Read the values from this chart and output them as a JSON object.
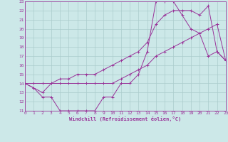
{
  "xlabel": "Windchill (Refroidissement éolien,°C)",
  "xlim": [
    0,
    23
  ],
  "ylim": [
    11,
    23
  ],
  "yticks": [
    11,
    12,
    13,
    14,
    15,
    16,
    17,
    18,
    19,
    20,
    21,
    22,
    23
  ],
  "xticks": [
    0,
    1,
    2,
    3,
    4,
    5,
    6,
    7,
    8,
    9,
    10,
    11,
    12,
    13,
    14,
    15,
    16,
    17,
    18,
    19,
    20,
    21,
    22,
    23
  ],
  "bg_color": "#cce8e8",
  "line_color": "#993399",
  "grid_color": "#aacccc",
  "line1_x": [
    0,
    1,
    2,
    3,
    4,
    5,
    6,
    7,
    8,
    9,
    10,
    11,
    12,
    13,
    14,
    15,
    16,
    17,
    18,
    19,
    20,
    21,
    22,
    23
  ],
  "line1_y": [
    14.0,
    13.5,
    12.5,
    12.5,
    11.0,
    11.0,
    11.0,
    11.0,
    11.0,
    12.5,
    12.5,
    14.0,
    14.0,
    15.0,
    17.5,
    23.0,
    23.0,
    23.0,
    21.5,
    20.0,
    19.5,
    17.0,
    17.5,
    16.5
  ],
  "line2_x": [
    0,
    1,
    2,
    3,
    4,
    5,
    6,
    7,
    8,
    9,
    10,
    11,
    12,
    13,
    14,
    15,
    16,
    17,
    18,
    19,
    20,
    21,
    22,
    23
  ],
  "line2_y": [
    14.0,
    13.5,
    13.0,
    14.0,
    14.5,
    14.5,
    15.0,
    15.0,
    15.0,
    15.5,
    16.0,
    16.5,
    17.0,
    17.5,
    18.5,
    20.5,
    21.5,
    22.0,
    22.0,
    22.0,
    21.5,
    22.5,
    17.5,
    16.5
  ],
  "line3_x": [
    0,
    1,
    2,
    3,
    4,
    5,
    6,
    7,
    8,
    9,
    10,
    11,
    12,
    13,
    14,
    15,
    16,
    17,
    18,
    19,
    20,
    21,
    22,
    23
  ],
  "line3_y": [
    14.0,
    14.0,
    14.0,
    14.0,
    14.0,
    14.0,
    14.0,
    14.0,
    14.0,
    14.0,
    14.0,
    14.5,
    15.0,
    15.5,
    16.0,
    17.0,
    17.5,
    18.0,
    18.5,
    19.0,
    19.5,
    20.0,
    20.5,
    16.5
  ]
}
